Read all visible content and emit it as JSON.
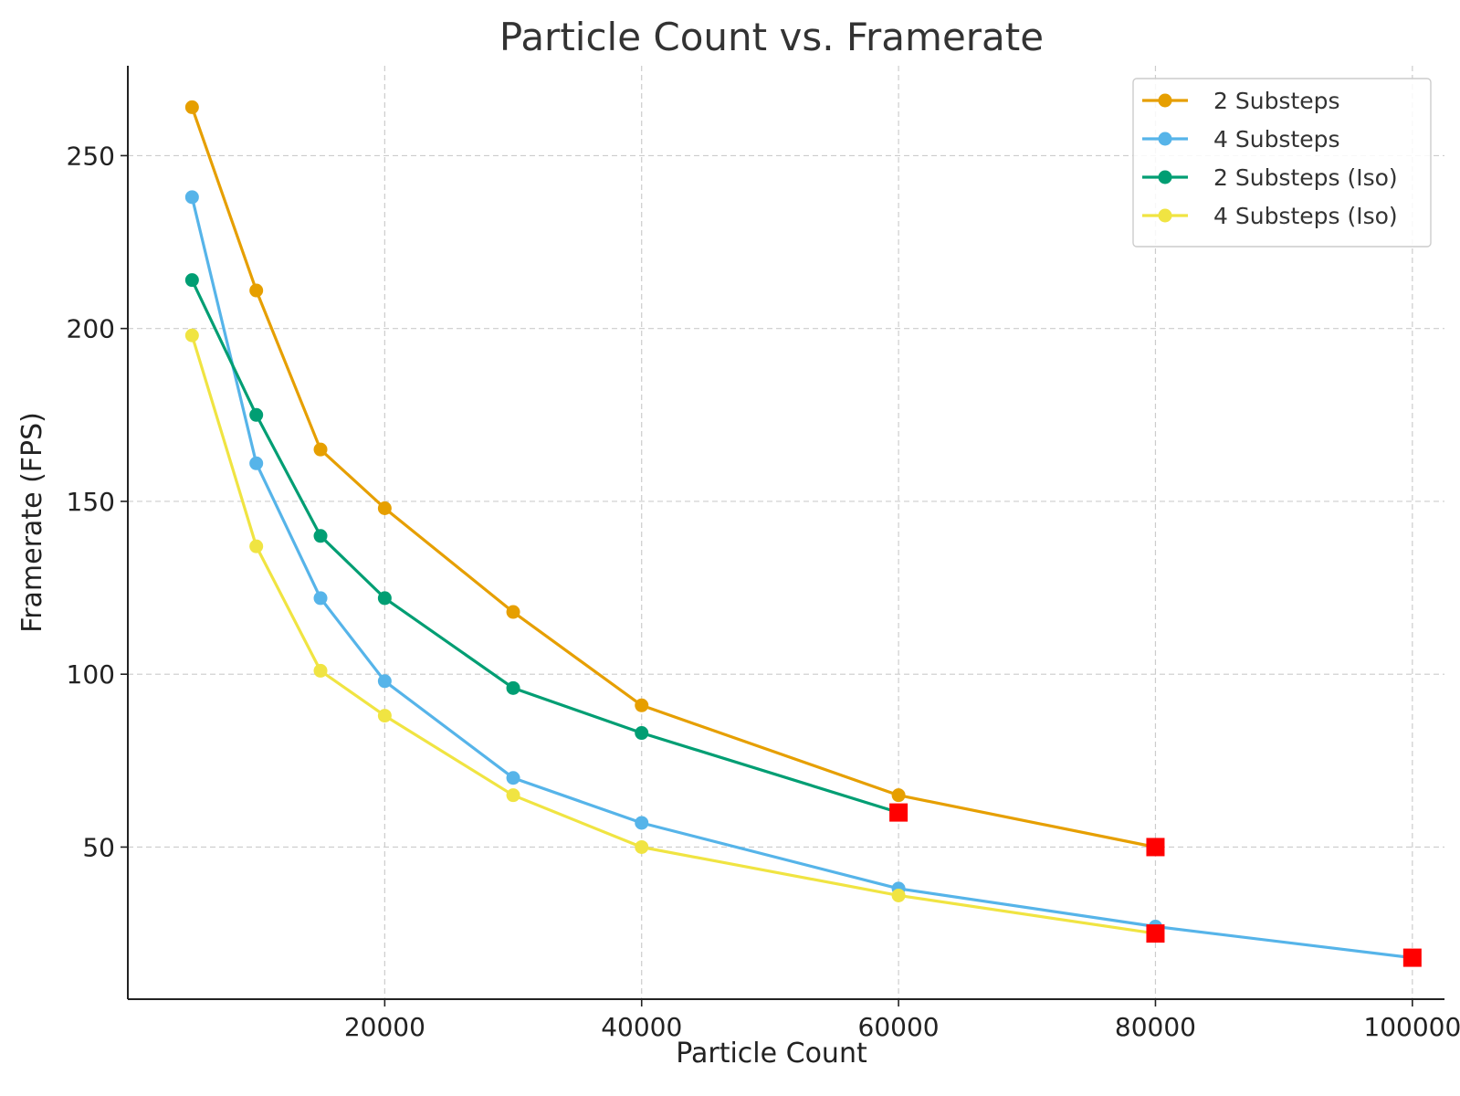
{
  "chart_data": {
    "type": "line",
    "title": "Particle Count vs. Framerate",
    "xlabel": "Particle Count",
    "ylabel": "Framerate (FPS)",
    "xlim": [
      0,
      102500
    ],
    "ylim": [
      6,
      276
    ],
    "xticks": [
      20000,
      40000,
      60000,
      80000,
      100000
    ],
    "yticks": [
      50,
      100,
      150,
      200,
      250
    ],
    "grid": true,
    "legend_position": "top-right",
    "series": [
      {
        "name": "2 Substeps",
        "color": "#E69F00",
        "x": [
          5000,
          10000,
          15000,
          20000,
          30000,
          40000,
          60000,
          80000
        ],
        "y": [
          264,
          211,
          165,
          148,
          118,
          91,
          65,
          50
        ]
      },
      {
        "name": "4 Substeps",
        "color": "#56B4E9",
        "x": [
          5000,
          10000,
          15000,
          20000,
          30000,
          40000,
          60000,
          80000,
          100000
        ],
        "y": [
          238,
          161,
          122,
          98,
          70,
          57,
          38,
          27,
          18
        ]
      },
      {
        "name": "2 Substeps (Iso)",
        "color": "#009E73",
        "x": [
          5000,
          10000,
          15000,
          20000,
          30000,
          40000,
          60000
        ],
        "y": [
          214,
          175,
          140,
          122,
          96,
          83,
          60
        ]
      },
      {
        "name": "4 Substeps (Iso)",
        "color": "#F0E442",
        "x": [
          5000,
          10000,
          15000,
          20000,
          30000,
          40000,
          60000,
          80000
        ],
        "y": [
          198,
          137,
          101,
          88,
          65,
          50,
          36,
          25
        ]
      }
    ],
    "markers": {
      "color": "#FF0000",
      "shape": "square",
      "points": [
        {
          "x": 60000,
          "y": 60
        },
        {
          "x": 80000,
          "y": 50
        },
        {
          "x": 80000,
          "y": 25
        },
        {
          "x": 100000,
          "y": 18
        }
      ]
    }
  }
}
